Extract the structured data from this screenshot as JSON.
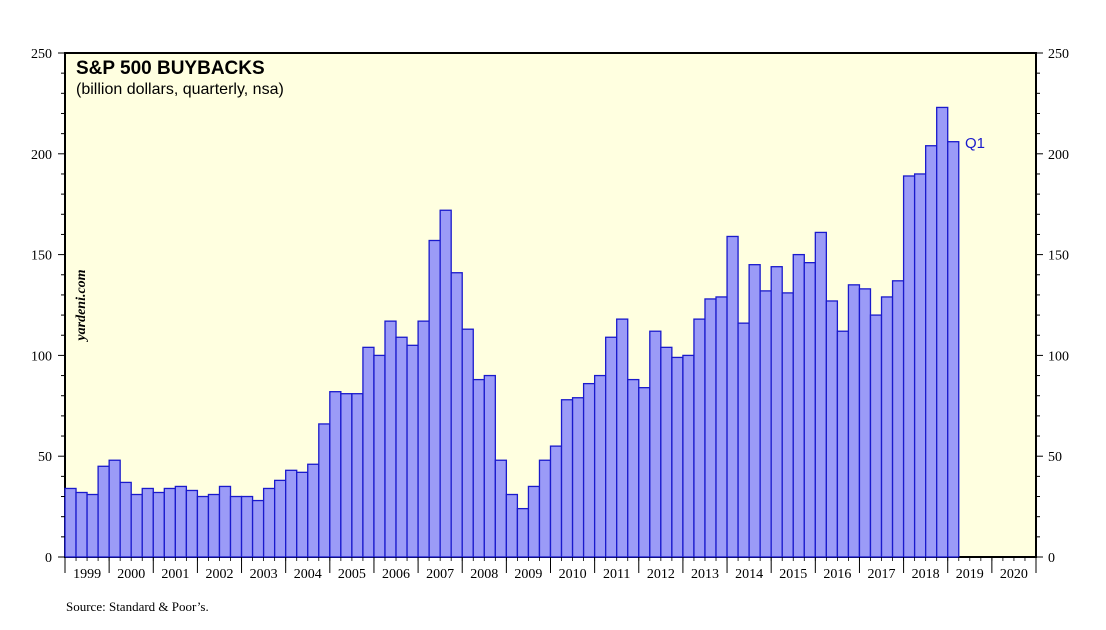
{
  "chart_data": {
    "type": "bar",
    "title": "S&P 500 BUYBACKS",
    "subtitle": "(billion dollars, quarterly, nsa)",
    "watermark": "yardeni.com",
    "source": "Source: Standard & Poor’s.",
    "annotation": "Q1",
    "ylim": [
      0,
      250
    ],
    "y_ticks": [
      0,
      50,
      100,
      150,
      200,
      250
    ],
    "years": [
      "1999",
      "2000",
      "2001",
      "2002",
      "2003",
      "2004",
      "2005",
      "2006",
      "2007",
      "2008",
      "2009",
      "2010",
      "2011",
      "2012",
      "2013",
      "2014",
      "2015",
      "2016",
      "2017",
      "2018",
      "2019",
      "2020"
    ],
    "grid": false,
    "colors": {
      "bar_fill": "#9b9bf7",
      "bar_stroke": "#1a1acc",
      "plot_bg": "#ffffe0",
      "annotation": "#1a1acc"
    },
    "series": [
      {
        "values": [
          34,
          32,
          31,
          45,
          48,
          37,
          31,
          34,
          32,
          34,
          35,
          33,
          30,
          31,
          35,
          30,
          30,
          28,
          34,
          38,
          43,
          42,
          46,
          66,
          82,
          81,
          81,
          104,
          100,
          117,
          109,
          105,
          117,
          157,
          172,
          141,
          113,
          88,
          90,
          48,
          31,
          24,
          35,
          48,
          55,
          78,
          79,
          86,
          90,
          109,
          118,
          88,
          84,
          112,
          104,
          99,
          100,
          118,
          128,
          129,
          159,
          116,
          145,
          132,
          144,
          131,
          150,
          146,
          161,
          127,
          112,
          135,
          133,
          120,
          129,
          137,
          189,
          190,
          204,
          223,
          206
        ]
      }
    ]
  }
}
